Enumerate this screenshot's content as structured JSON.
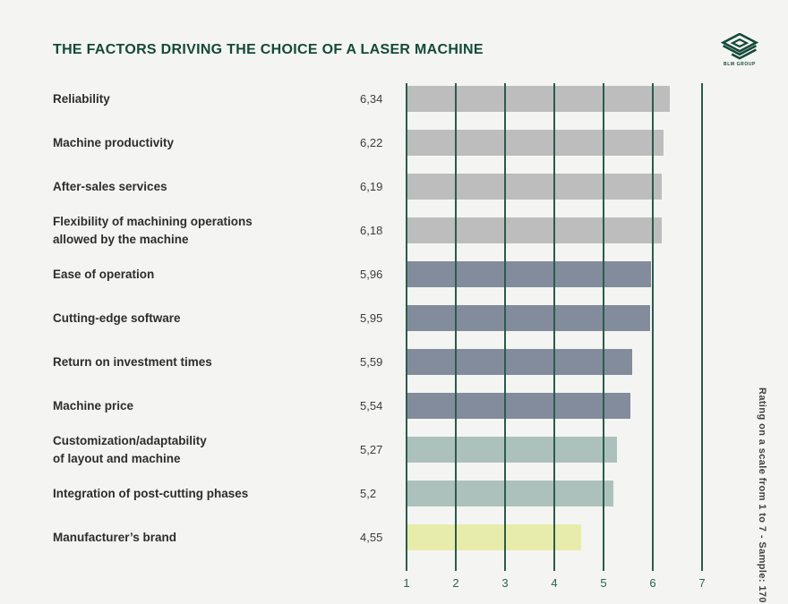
{
  "logo": {
    "text": "BLM GROUP"
  },
  "colors": {
    "gray": "#bdbdbd",
    "slate": "#838c9c",
    "sage": "#adc1bc",
    "yellow": "#e8ecab",
    "grid": "#2b5b4d",
    "axis_text": "#2c614f",
    "title_text": "#14493a",
    "background": "#f4f5f2"
  },
  "chart_data": {
    "type": "bar",
    "orientation": "horizontal",
    "title": "THE FACTORS DRIVING THE CHOICE OF A LASER MACHINE",
    "categories": [
      "Reliability",
      "Machine productivity",
      "After-sales services",
      "Flexibility of machining operations\nallowed by the machine",
      "Ease of operation",
      "Cutting-edge software",
      "Return on investment times",
      "Machine price",
      "Customization/adaptability\nof layout and machine",
      "Integration of post-cutting phases",
      "Manufacturer’s brand"
    ],
    "values": [
      6.34,
      6.22,
      6.19,
      6.18,
      5.96,
      5.95,
      5.59,
      5.54,
      5.27,
      5.2,
      4.55
    ],
    "value_labels": [
      "6,34",
      "6,22",
      "6,19",
      "6,18",
      "5,96",
      "5,95",
      "5,59",
      "5,54",
      "5,27",
      "5,2",
      "4,55"
    ],
    "bar_color_keys": [
      "gray",
      "gray",
      "gray",
      "gray",
      "slate",
      "slate",
      "slate",
      "slate",
      "sage",
      "sage",
      "yellow"
    ],
    "xlim": [
      1,
      7
    ],
    "xticks": [
      1,
      2,
      3,
      4,
      5,
      6,
      7
    ],
    "grid": "vertical",
    "note": "Rating on a scale from 1 to 7 - Sample: 170"
  }
}
